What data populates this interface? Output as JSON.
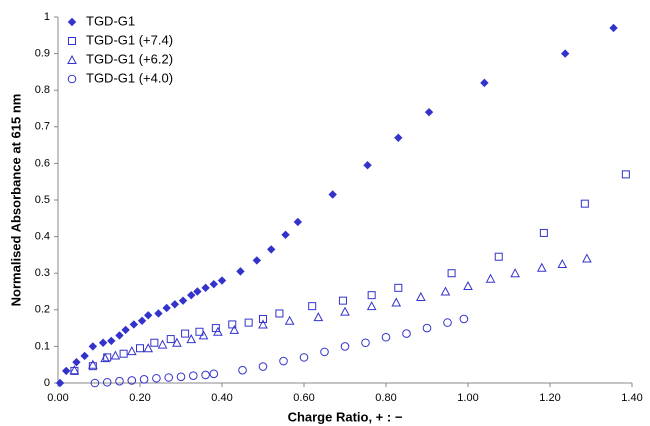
{
  "chart_data": {
    "type": "scatter",
    "xlabel": "Charge Ratio, + : −",
    "ylabel": "Normalised Absorbance at 615 nm",
    "xlim": [
      0,
      1.4
    ],
    "ylim": [
      0,
      1
    ],
    "xticks": [
      {
        "value": 0,
        "label": "0.00"
      },
      {
        "value": 0.2,
        "label": "0.20"
      },
      {
        "value": 0.4,
        "label": "0.40"
      },
      {
        "value": 0.6,
        "label": "0.60"
      },
      {
        "value": 0.8,
        "label": "0.80"
      },
      {
        "value": 1.0,
        "label": "1.00"
      },
      {
        "value": 1.2,
        "label": "1.20"
      },
      {
        "value": 1.4,
        "label": "1.40"
      }
    ],
    "yticks": [
      0,
      0.1,
      0.2,
      0.3,
      0.4,
      0.5,
      0.6,
      0.7,
      0.8,
      0.9,
      1
    ],
    "legend": "upper left",
    "series": [
      {
        "name": "TGD-G1",
        "color": "#3333cc",
        "marker": "diamond",
        "x": [
          0.005,
          0.02,
          0.045,
          0.065,
          0.085,
          0.11,
          0.13,
          0.15,
          0.165,
          0.185,
          0.205,
          0.22,
          0.245,
          0.265,
          0.285,
          0.305,
          0.325,
          0.34,
          0.36,
          0.38,
          0.4,
          0.445,
          0.485,
          0.52,
          0.555,
          0.585,
          0.67,
          0.755,
          0.83,
          0.905,
          1.04,
          1.237,
          1.355
        ],
        "values": [
          0,
          0.033,
          0.057,
          0.074,
          0.1,
          0.11,
          0.115,
          0.13,
          0.145,
          0.16,
          0.17,
          0.185,
          0.19,
          0.205,
          0.215,
          0.225,
          0.24,
          0.25,
          0.26,
          0.27,
          0.28,
          0.305,
          0.335,
          0.365,
          0.405,
          0.44,
          0.515,
          0.595,
          0.67,
          0.74,
          0.82,
          0.9,
          0.97
        ]
      },
      {
        "name": "TGD-G1 (+7.4)",
        "color": "#3333cc",
        "marker": "square",
        "x": [
          0.04,
          0.085,
          0.12,
          0.16,
          0.2,
          0.235,
          0.275,
          0.31,
          0.345,
          0.385,
          0.425,
          0.465,
          0.5,
          0.54,
          0.62,
          0.695,
          0.765,
          0.83,
          0.96,
          1.075,
          1.185,
          1.285,
          1.385
        ],
        "values": [
          0.033,
          0.046,
          0.07,
          0.08,
          0.095,
          0.11,
          0.12,
          0.135,
          0.14,
          0.15,
          0.16,
          0.165,
          0.175,
          0.19,
          0.21,
          0.225,
          0.24,
          0.26,
          0.3,
          0.345,
          0.41,
          0.49,
          0.57
        ]
      },
      {
        "name": "TGD-G1 (+6.2)",
        "color": "#3333cc",
        "marker": "triangle",
        "x": [
          0.04,
          0.085,
          0.115,
          0.14,
          0.18,
          0.22,
          0.255,
          0.29,
          0.325,
          0.355,
          0.39,
          0.43,
          0.5,
          0.565,
          0.635,
          0.7,
          0.765,
          0.825,
          0.885,
          0.945,
          1.0,
          1.055,
          1.115,
          1.18,
          1.23,
          1.29
        ],
        "values": [
          0.035,
          0.05,
          0.068,
          0.075,
          0.087,
          0.095,
          0.105,
          0.11,
          0.12,
          0.13,
          0.14,
          0.145,
          0.16,
          0.17,
          0.18,
          0.195,
          0.21,
          0.22,
          0.235,
          0.25,
          0.265,
          0.285,
          0.3,
          0.315,
          0.325,
          0.34
        ]
      },
      {
        "name": "TGD-G1 (+4.0)",
        "color": "#3333cc",
        "marker": "circle",
        "x": [
          0.09,
          0.12,
          0.15,
          0.18,
          0.21,
          0.24,
          0.27,
          0.3,
          0.33,
          0.36,
          0.38,
          0.45,
          0.5,
          0.55,
          0.6,
          0.65,
          0.7,
          0.75,
          0.8,
          0.85,
          0.9,
          0.95,
          0.99
        ],
        "values": [
          0,
          0.002,
          0.005,
          0.007,
          0.01,
          0.013,
          0.015,
          0.017,
          0.02,
          0.022,
          0.025,
          0.035,
          0.045,
          0.06,
          0.07,
          0.085,
          0.1,
          0.11,
          0.125,
          0.135,
          0.15,
          0.165,
          0.175
        ]
      }
    ]
  }
}
